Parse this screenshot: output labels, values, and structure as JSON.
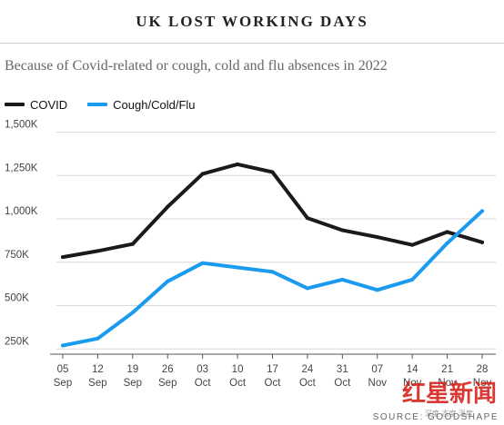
{
  "header": {
    "title": "UK LOST WORKING DAYS",
    "subtitle": "Because of Covid-related or cough, cold and flu absences in 2022"
  },
  "legend": [
    {
      "label": "COVID",
      "color": "#1a1a1a"
    },
    {
      "label": "Cough/Cold/Flu",
      "color": "#1a9bf0"
    }
  ],
  "source": "SOURCE: GOODSHAPE",
  "watermark": {
    "logo": "红星新闻",
    "sub": "深度 态度 温度"
  },
  "chart_data": {
    "type": "line",
    "title": "UK LOST WORKING DAYS",
    "subtitle": "Because of Covid-related or cough, cold and flu absences in 2022",
    "categories": [
      [
        "05",
        "Sep"
      ],
      [
        "12",
        "Sep"
      ],
      [
        "19",
        "Sep"
      ],
      [
        "26",
        "Sep"
      ],
      [
        "03",
        "Oct"
      ],
      [
        "10",
        "Oct"
      ],
      [
        "17",
        "Oct"
      ],
      [
        "24",
        "Oct"
      ],
      [
        "31",
        "Oct"
      ],
      [
        "07",
        "Nov"
      ],
      [
        "14",
        "Nov"
      ],
      [
        "21",
        "Nov"
      ],
      [
        "28",
        "Nov"
      ]
    ],
    "series": [
      {
        "name": "COVID",
        "color": "#1a1a1a",
        "values": [
          780,
          815,
          855,
          1070,
          1260,
          1315,
          1270,
          1005,
          935,
          895,
          850,
          925,
          865
        ]
      },
      {
        "name": "Cough/Cold/Flu",
        "color": "#1a9bf0",
        "values": [
          270,
          310,
          460,
          640,
          745,
          720,
          695,
          600,
          650,
          590,
          650,
          860,
          1045
        ]
      }
    ],
    "yticks": [
      250,
      500,
      750,
      1000,
      1250,
      1500
    ],
    "ytick_labels": [
      "250K",
      "500K",
      "750K",
      "1,000K",
      "1,250K",
      "1,500K"
    ],
    "ylim": [
      220,
      1550
    ],
    "grid": true,
    "legend_position": "top-left"
  }
}
